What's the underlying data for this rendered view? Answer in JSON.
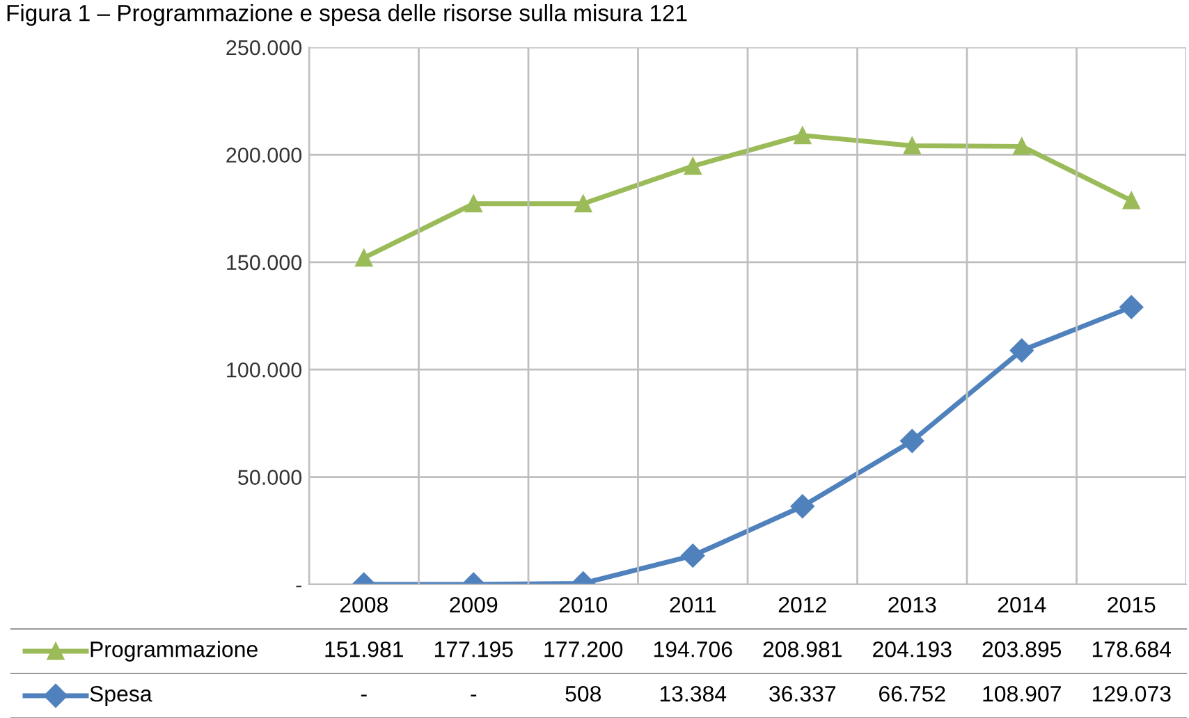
{
  "chart_data": {
    "type": "line",
    "title": "Figura 1 – Programmazione e spesa delle risorse sulla misura 121",
    "categories": [
      "2008",
      "2009",
      "2010",
      "2011",
      "2012",
      "2013",
      "2014",
      "2015"
    ],
    "series": [
      {
        "name": "Programmazione",
        "color": "#9bbb59",
        "marker": "triangle",
        "values": [
          151981,
          177195,
          177200,
          194706,
          208981,
          204193,
          203895,
          178684
        ],
        "value_labels": [
          "151.981",
          "177.195",
          "177.200",
          "194.706",
          "208.981",
          "204.193",
          "203.895",
          "178.684"
        ]
      },
      {
        "name": "Spesa",
        "color": "#4f81bd",
        "marker": "diamond",
        "values": [
          0,
          0,
          508,
          13384,
          36337,
          66752,
          108907,
          129073
        ],
        "value_labels": [
          "-",
          "-",
          "508",
          "13.384",
          "36.337",
          "66.752",
          "108.907",
          "129.073"
        ]
      }
    ],
    "ylim": [
      0,
      250000
    ],
    "yticks": [
      {
        "value": 0,
        "label": "-"
      },
      {
        "value": 50000,
        "label": "50.000"
      },
      {
        "value": 100000,
        "label": "100.000"
      },
      {
        "value": 150000,
        "label": "150.000"
      },
      {
        "value": 200000,
        "label": "200.000"
      },
      {
        "value": 250000,
        "label": "250.000"
      }
    ],
    "grid": "y",
    "legend": "bottom",
    "line_style": "solid"
  }
}
